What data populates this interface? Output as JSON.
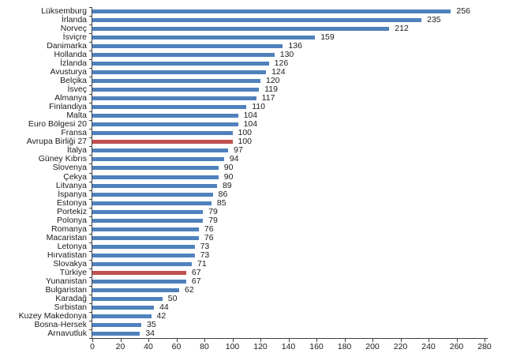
{
  "chart_data": {
    "type": "bar",
    "orientation": "horizontal",
    "title": "",
    "xlabel": "",
    "ylabel": "",
    "xlim": [
      0,
      280
    ],
    "x_ticks": [
      0,
      20,
      40,
      60,
      80,
      100,
      120,
      140,
      160,
      180,
      200,
      220,
      240,
      260,
      280
    ],
    "grid": false,
    "legend": "none",
    "value_labels_shown": true,
    "bar_color": "#4F81BD",
    "highlight_color": "#C0504D",
    "text_color": "#1a1a1a",
    "axis_color": "#404040",
    "highlight_categories": [
      "Avrupa Birliği 27",
      "Türkiye"
    ],
    "categories": [
      "Lüksemburg",
      "İrlanda",
      "Norveç",
      "İsviçre",
      "Danimarka",
      "Hollanda",
      "İzlanda",
      "Avusturya",
      "Belçika",
      "İsveç",
      "Almanya",
      "Finlandiya",
      "Malta",
      "Euro Bölgesi 20",
      "Fransa",
      "Avrupa Birliği 27",
      "İtalya",
      "Güney Kıbrıs",
      "Slovenya",
      "Çekya",
      "Litvanya",
      "İspanya",
      "Estonya",
      "Portekiz",
      "Polonya",
      "Romanya",
      "Macaristan",
      "Letonya",
      "Hırvatistan",
      "Slovakya",
      "Türkiye",
      "Yunanistan",
      "Bulgaristan",
      "Karadağ",
      "Sırbistan",
      "Kuzey Makedonya",
      "Bosna-Hersek",
      "Arnavutluk"
    ],
    "values": [
      256,
      235,
      212,
      159,
      136,
      130,
      126,
      124,
      120,
      119,
      117,
      110,
      104,
      104,
      100,
      100,
      97,
      94,
      90,
      90,
      89,
      86,
      85,
      79,
      79,
      76,
      76,
      73,
      73,
      71,
      67,
      67,
      62,
      50,
      44,
      42,
      35,
      34
    ]
  }
}
